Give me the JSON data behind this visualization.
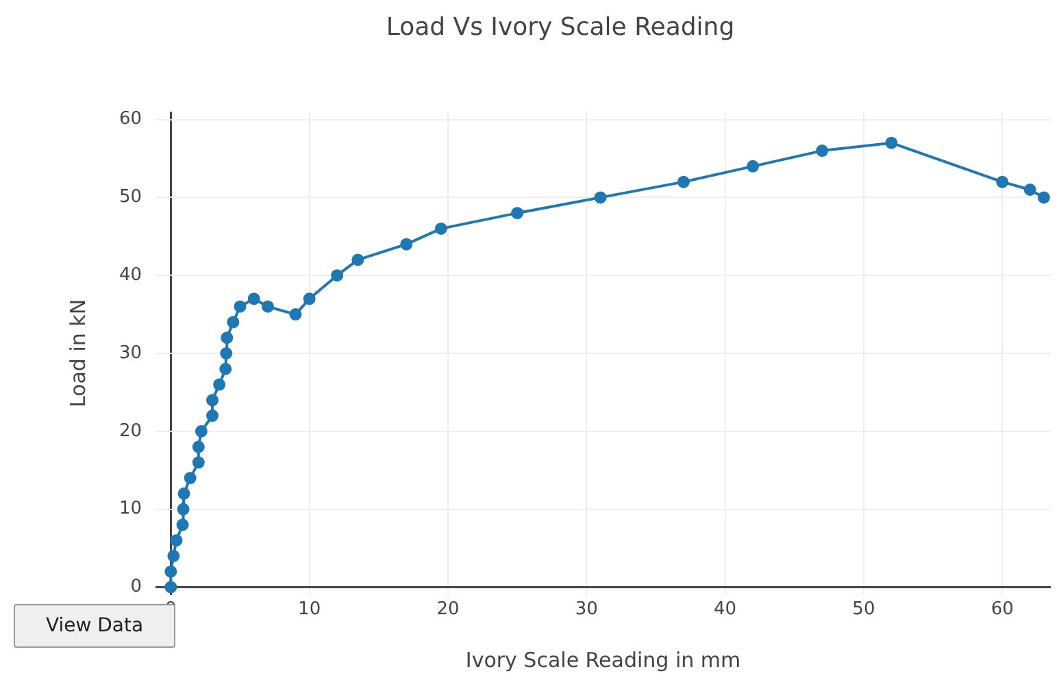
{
  "chart_data": {
    "type": "line",
    "title": "Load Vs Ivory Scale Reading",
    "xlabel": "Ivory Scale Reading in mm",
    "ylabel": "Load in kN",
    "annotations": [
      "View Data"
    ],
    "x": [
      0,
      0,
      0.2,
      0.4,
      0.85,
      0.9,
      0.95,
      1.4,
      2,
      2,
      2.2,
      3,
      3,
      3.5,
      3.95,
      4,
      4.05,
      4.5,
      5,
      6,
      7,
      9,
      10,
      12,
      13.5,
      17,
      19.5,
      25,
      31,
      37,
      42,
      47,
      52,
      60,
      62,
      63
    ],
    "series": [
      {
        "color": "#1f77b4",
        "values": [
          0,
          2,
          4,
          6,
          8,
          10,
          12,
          14,
          16,
          18,
          20,
          22,
          24,
          26,
          28,
          30,
          32,
          34,
          36,
          37,
          36,
          35,
          37,
          40,
          42,
          44,
          46,
          48,
          50,
          52,
          54,
          56,
          57,
          52,
          51,
          50
        ]
      }
    ],
    "xlim": [
      -1.1,
      63.5
    ],
    "xticks": [
      0,
      10,
      20,
      30,
      40,
      50,
      60
    ],
    "ylim": [
      -1,
      61
    ],
    "yticks": [
      0,
      10,
      20,
      30,
      40,
      50,
      60
    ],
    "grid": true,
    "legend": false,
    "marker": "circle",
    "line_style": "solid"
  }
}
